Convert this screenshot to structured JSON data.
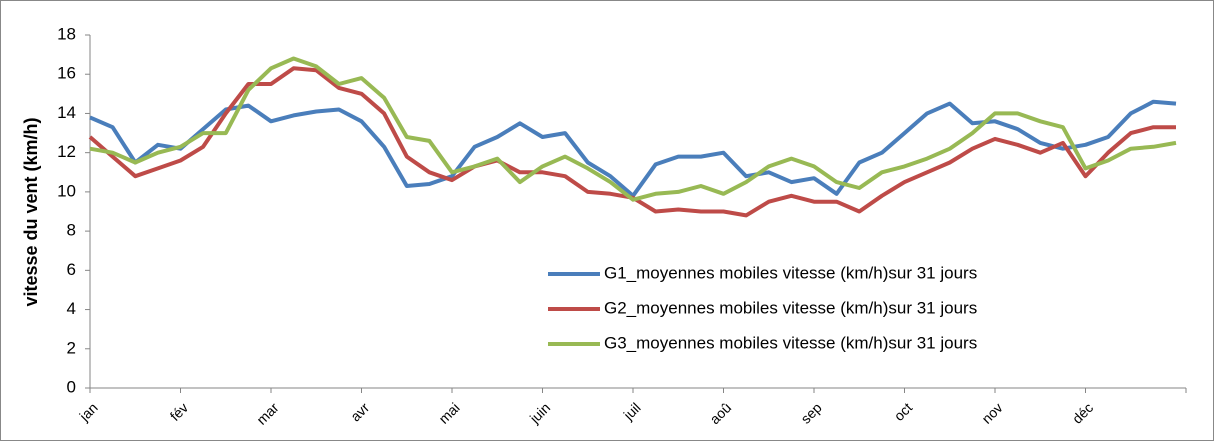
{
  "chart_data": {
    "type": "line",
    "ylabel": "vitesse du vent (km/h)",
    "categories": [
      "jan",
      null,
      null,
      null,
      "fév",
      null,
      null,
      null,
      "mar",
      null,
      null,
      null,
      "avr",
      null,
      null,
      null,
      "mai",
      null,
      null,
      null,
      "juin",
      null,
      null,
      null,
      "juil",
      null,
      null,
      null,
      "aoû",
      null,
      null,
      null,
      "sep",
      null,
      null,
      null,
      "oct",
      null,
      null,
      null,
      "nov",
      null,
      null,
      null,
      "déc",
      null,
      null,
      null,
      null
    ],
    "series": [
      {
        "name": "G1_moyennes mobiles vitesse (km/h)sur 31 jours",
        "color": "#4a7ebb",
        "values": [
          13.8,
          13.3,
          11.5,
          12.4,
          12.2,
          13.2,
          14.2,
          14.4,
          13.6,
          13.9,
          14.1,
          14.2,
          13.6,
          12.3,
          10.3,
          10.4,
          10.8,
          12.3,
          12.8,
          13.5,
          12.8,
          13.0,
          11.5,
          10.8,
          9.8,
          11.4,
          11.8,
          11.8,
          12.0,
          10.8,
          11.0,
          10.5,
          10.7,
          9.9,
          11.5,
          12.0,
          13.0,
          14.0,
          14.5,
          13.5,
          13.6,
          13.2,
          12.5,
          12.2,
          12.4,
          12.8,
          14.0,
          14.6,
          14.5
        ]
      },
      {
        "name": "G2_moyennes mobiles vitesse (km/h)sur 31 jours",
        "color": "#be4b48",
        "values": [
          12.8,
          11.8,
          10.8,
          11.2,
          11.6,
          12.3,
          14.0,
          15.5,
          15.5,
          16.3,
          16.2,
          15.3,
          15.0,
          14.0,
          11.8,
          11.0,
          10.6,
          11.3,
          11.6,
          11.0,
          11.0,
          10.8,
          10.0,
          9.9,
          9.7,
          9.0,
          9.1,
          9.0,
          9.0,
          8.8,
          9.5,
          9.8,
          9.5,
          9.5,
          9.0,
          9.8,
          10.5,
          11.0,
          11.5,
          12.2,
          12.7,
          12.4,
          12.0,
          12.5,
          10.8,
          12.0,
          13.0,
          13.3,
          13.3
        ]
      },
      {
        "name": "G3_moyennes mobiles vitesse (km/h)sur 31 jours",
        "color": "#98b954",
        "values": [
          12.2,
          12.0,
          11.5,
          12.0,
          12.3,
          13.0,
          13.0,
          15.2,
          16.3,
          16.8,
          16.4,
          15.5,
          15.8,
          14.8,
          12.8,
          12.6,
          11.0,
          11.3,
          11.7,
          10.5,
          11.3,
          11.8,
          11.2,
          10.5,
          9.6,
          9.9,
          10.0,
          10.3,
          9.9,
          10.5,
          11.3,
          11.7,
          11.3,
          10.5,
          10.2,
          11.0,
          11.3,
          11.7,
          12.2,
          13.0,
          14.0,
          14.0,
          13.6,
          13.3,
          11.2,
          11.6,
          12.2,
          12.3,
          12.5
        ]
      }
    ],
    "ylim": [
      0,
      18
    ],
    "yticks": [
      0,
      2,
      4,
      6,
      8,
      10,
      12,
      14,
      16,
      18
    ],
    "grid": false,
    "legend": "lower right"
  }
}
